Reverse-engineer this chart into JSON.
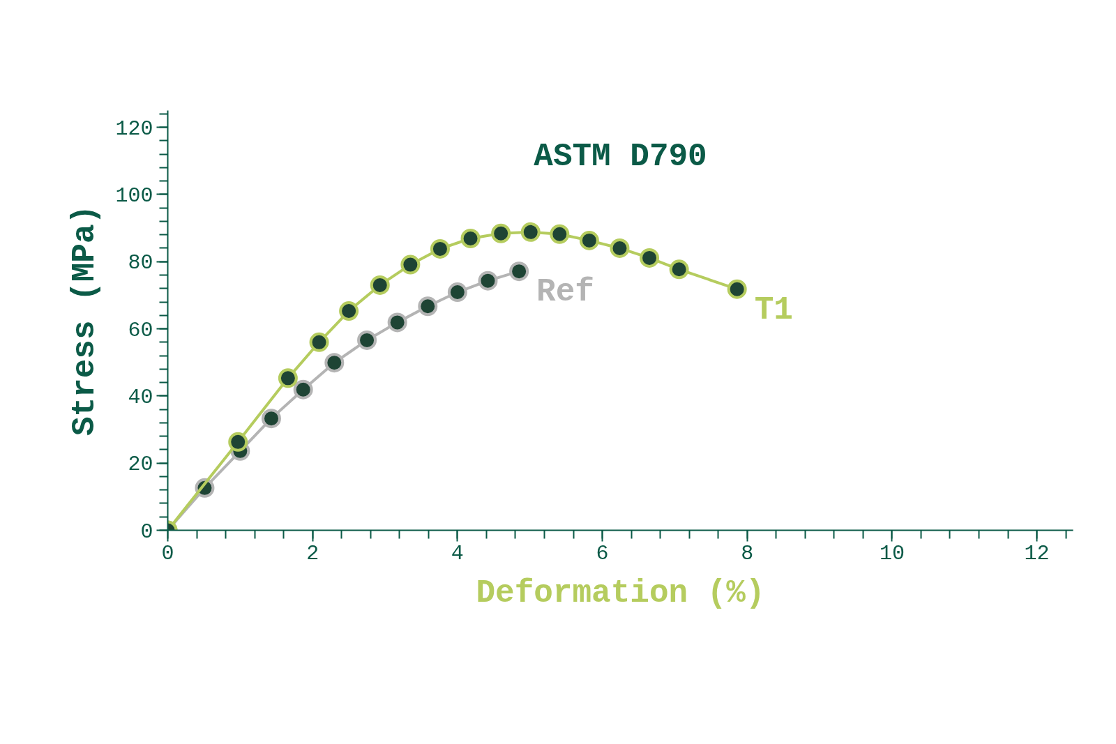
{
  "chart_data": {
    "type": "line",
    "title": "ASTM D790",
    "xlabel": "Deformation (%)",
    "ylabel": "Stress (MPa)",
    "xlim": [
      0,
      12.5
    ],
    "ylim": [
      0,
      125
    ],
    "xticks": [
      0,
      2,
      4,
      6,
      8,
      10,
      12
    ],
    "yticks": [
      0,
      20,
      40,
      60,
      80,
      100,
      120
    ],
    "grid": false,
    "marker": "circle",
    "line_style": "solid",
    "series": [
      {
        "name": "Ref",
        "color": "#b4b4b4",
        "x": [
          0,
          0.51,
          1.0,
          1.43,
          1.87,
          2.3,
          2.75,
          3.17,
          3.59,
          4.0,
          4.42,
          4.85
        ],
        "values": [
          0,
          12.6,
          23.6,
          33.3,
          41.9,
          49.9,
          56.6,
          61.9,
          66.7,
          70.9,
          74.3,
          77.1
        ]
      },
      {
        "name": "T1",
        "color": "#b5cc5e",
        "x": [
          0,
          0.97,
          1.66,
          2.09,
          2.5,
          2.93,
          3.35,
          3.76,
          4.18,
          4.6,
          5.01,
          5.41,
          5.82,
          6.24,
          6.65,
          7.06,
          7.86
        ],
        "values": [
          0,
          26.3,
          45.3,
          56.0,
          65.3,
          73.0,
          79.1,
          83.8,
          86.9,
          88.4,
          88.8,
          88.2,
          86.3,
          84.0,
          81.1,
          77.7,
          71.8
        ]
      }
    ]
  }
}
